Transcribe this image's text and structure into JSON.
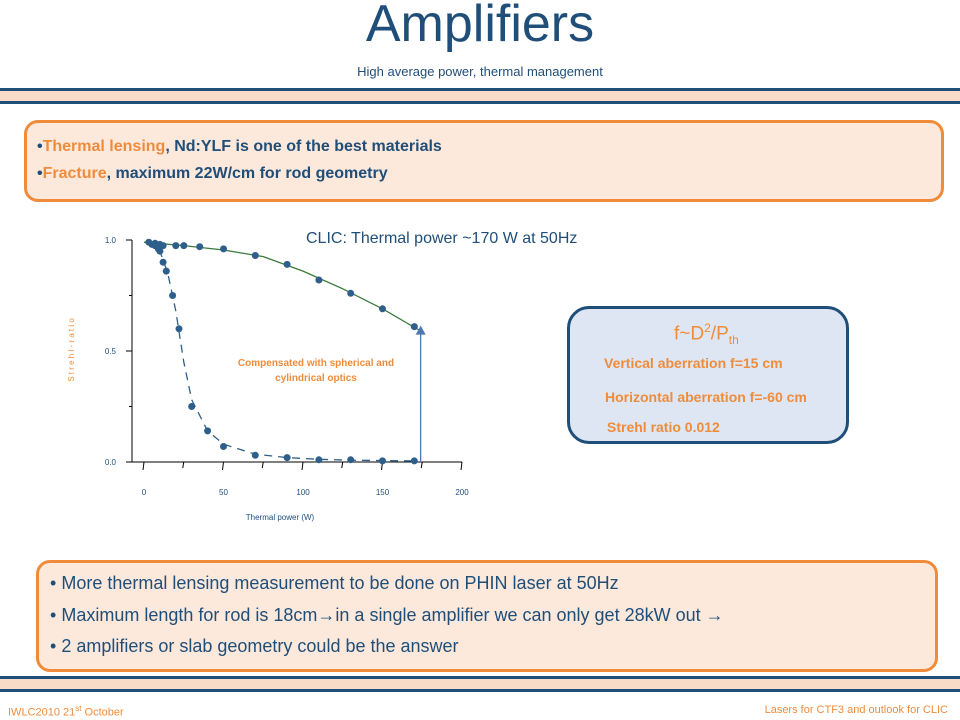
{
  "slide": {
    "title": "Amplifiers",
    "subtitle": "High average power, thermal management"
  },
  "top_box": {
    "bullet1_highlight": "Thermal lensing",
    "bullet1_rest": ", Nd:YLF is one of the best materials",
    "bullet2_highlight": "Fracture",
    "bullet2_rest": ", maximum 22W/cm for rod geometry",
    "bullet_char": "•"
  },
  "clic_note": "CLIC: Thermal power ~170 W at 50Hz",
  "formula_box": {
    "formula_main": "f~D",
    "formula_sup": "2",
    "formula_mid": "/P",
    "formula_sub": "th",
    "vertical": "Vertical aberration f=15 cm",
    "horizontal": "Horizontal aberration f=-60 cm",
    "strehl": "Strehl ratio 0.012"
  },
  "bottom_box": {
    "bullets": [
      "More thermal lensing measurement to be done on PHIN laser at 50Hz",
      "Maximum length for rod is 18cm→in a single amplifier we can only get 28kW out →",
      "2 amplifiers or slab geometry could be the answer"
    ],
    "bullet_char": "•"
  },
  "footer": {
    "left_main": "IWLC2010 21",
    "left_sup": "st",
    "left_end": " October",
    "right": "Lasers for CTF3 and outlook for CLIC"
  },
  "colors": {
    "primary_blue": "#1f4e79",
    "accent_orange": "#ef8c3c",
    "marker_blue": "#2e5f8a",
    "fit_green": "#3a7a3a"
  },
  "chart_data": {
    "type": "scatter",
    "title": "",
    "xlabel": "Thermal power (W)",
    "ylabel": "S t r e h l - r a t i o",
    "xlim": [
      0,
      200
    ],
    "ylim": [
      0.0,
      1.0
    ],
    "x_ticks": [
      "0",
      "50",
      "100",
      "150",
      "200"
    ],
    "y_ticks": [
      "0.0",
      "0.5",
      "1.0"
    ],
    "annotation": "Compensated with spherical and cylindrical optics",
    "series": [
      {
        "style": "compensated",
        "points": [
          [
            3,
            0.99
          ],
          [
            7,
            0.985
          ],
          [
            10,
            0.98
          ],
          [
            12,
            0.975
          ],
          [
            20,
            0.975
          ],
          [
            25,
            0.975
          ],
          [
            35,
            0.97
          ],
          [
            50,
            0.96
          ],
          [
            70,
            0.93
          ],
          [
            90,
            0.89
          ],
          [
            110,
            0.82
          ],
          [
            130,
            0.76
          ],
          [
            150,
            0.69
          ],
          [
            170,
            0.61
          ]
        ],
        "fit": [
          [
            0,
            0.99
          ],
          [
            25,
            0.975
          ],
          [
            50,
            0.955
          ],
          [
            75,
            0.925
          ],
          [
            100,
            0.86
          ],
          [
            125,
            0.78
          ],
          [
            150,
            0.69
          ],
          [
            174,
            0.59
          ]
        ]
      },
      {
        "style": "uncompensated",
        "points": [
          [
            5,
            0.98
          ],
          [
            7,
            0.975
          ],
          [
            9,
            0.96
          ],
          [
            10,
            0.95
          ],
          [
            12,
            0.9
          ],
          [
            14,
            0.86
          ],
          [
            18,
            0.75
          ],
          [
            22,
            0.6
          ],
          [
            30,
            0.25
          ],
          [
            40,
            0.14
          ],
          [
            50,
            0.07
          ],
          [
            70,
            0.03
          ],
          [
            90,
            0.02
          ],
          [
            110,
            0.01
          ],
          [
            130,
            0.01
          ],
          [
            150,
            0.005
          ],
          [
            170,
            0.005
          ]
        ],
        "fit": [
          [
            3,
            1.0
          ],
          [
            10,
            0.95
          ],
          [
            15,
            0.85
          ],
          [
            20,
            0.68
          ],
          [
            25,
            0.45
          ],
          [
            30,
            0.28
          ],
          [
            40,
            0.14
          ],
          [
            50,
            0.08
          ],
          [
            70,
            0.035
          ],
          [
            90,
            0.02
          ],
          [
            110,
            0.012
          ],
          [
            130,
            0.008
          ],
          [
            170,
            0.005
          ]
        ]
      }
    ],
    "arrow": {
      "x": 174,
      "y_from": 0.0,
      "y_to": 0.61
    }
  }
}
